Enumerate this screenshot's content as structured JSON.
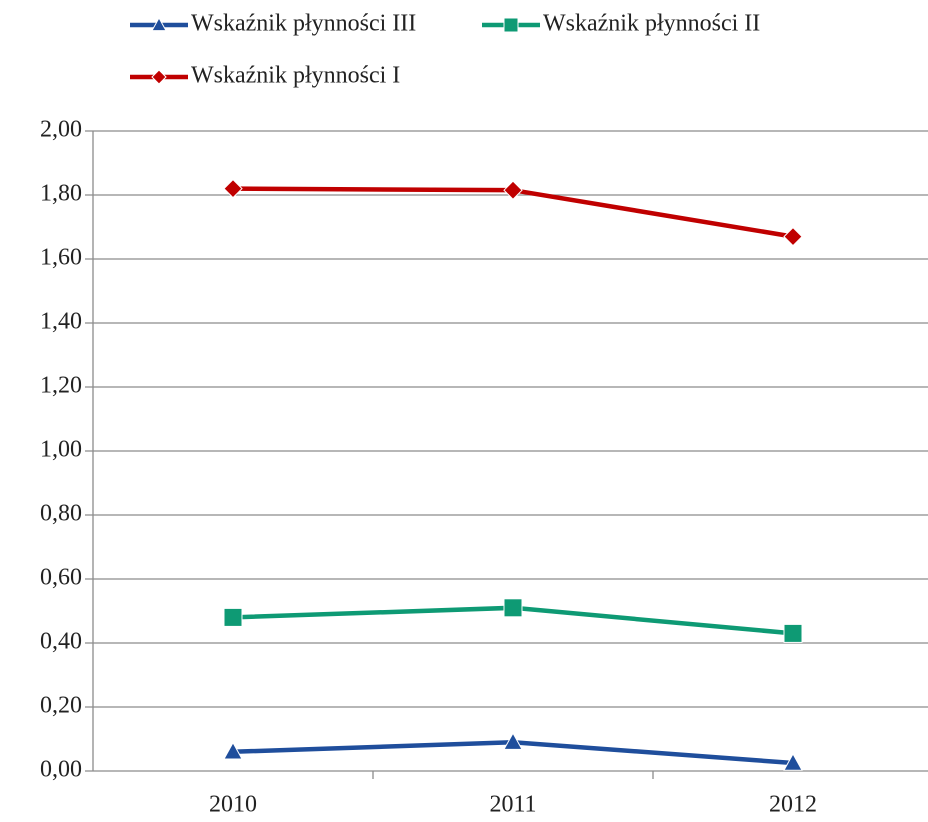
{
  "chart_data": {
    "type": "line",
    "categories": [
      "2010",
      "2011",
      "2012"
    ],
    "series": [
      {
        "name": "Wskaźnik płynności III",
        "color": "#1f4e9c",
        "marker": "triangle",
        "values": [
          0.06,
          0.09,
          0.025
        ]
      },
      {
        "name": "Wskaźnik płynności II",
        "color": "#0e9a74",
        "marker": "square",
        "values": [
          0.48,
          0.51,
          0.43
        ]
      },
      {
        "name": "Wskaźnik płynności I",
        "color": "#c00000",
        "marker": "diamond",
        "values": [
          1.82,
          1.815,
          1.67
        ]
      }
    ],
    "ylim": [
      0,
      2
    ],
    "yticks": [
      {
        "value": 0,
        "label": "0,00"
      },
      {
        "value": 0.2,
        "label": "0,20"
      },
      {
        "value": 0.4,
        "label": "0,40"
      },
      {
        "value": 0.6,
        "label": "0,60"
      },
      {
        "value": 0.8,
        "label": "0,80"
      },
      {
        "value": 1,
        "label": "1,00"
      },
      {
        "value": 1.2,
        "label": "1,20"
      },
      {
        "value": 1.4,
        "label": "1,40"
      },
      {
        "value": 1.6,
        "label": "1,60"
      },
      {
        "value": 1.8,
        "label": "1,80"
      },
      {
        "value": 2,
        "label": "2,00"
      }
    ],
    "grid": true,
    "legend": "top"
  }
}
